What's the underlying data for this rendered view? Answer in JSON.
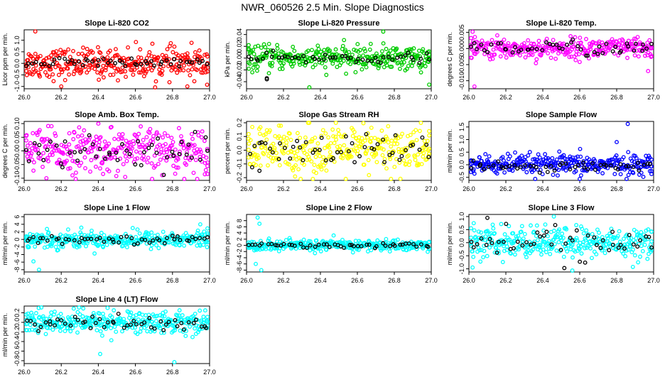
{
  "page_title": "NWR_060526  2.5 Min. Slope Diagnostics",
  "colors": {
    "red": "#ff0000",
    "green": "#00cc00",
    "magenta": "#ff00ff",
    "yellow": "#ffff00",
    "blue": "#0000ff",
    "cyan": "#00ffff",
    "black": "#000000"
  },
  "chart_data": [
    {
      "type": "scatter",
      "title": "Slope Li-820 CO2",
      "ylabel": "Licor ppm per min.",
      "xlabel": "",
      "xlim": [
        26.0,
        27.0
      ],
      "ylim": [
        -1.1,
        1.45
      ],
      "x_ticks": [
        "26.0",
        "26.2",
        "26.4",
        "26.6",
        "26.8",
        "27.0"
      ],
      "y_ticks": [
        -1.0,
        -0.5,
        0.0,
        0.5,
        1.0
      ],
      "y_tick_labels": [
        "-1.0",
        "-0.5",
        "0.0",
        "0.5",
        "1.0"
      ],
      "color_key": "red",
      "series": [
        {
          "name": "primary",
          "color_key": "red",
          "n": 330,
          "center": 0.0,
          "spread": 0.32,
          "outliers": [
            [
              26.06,
              1.38
            ],
            [
              26.2,
              -1.0
            ],
            [
              26.88,
              -1.0
            ]
          ]
        },
        {
          "name": "secondary",
          "color_key": "black",
          "n": 50,
          "center": 0.02,
          "spread": 0.12,
          "outliers": []
        }
      ]
    },
    {
      "type": "scatter",
      "title": "Slope Li-820 Pressure",
      "ylabel": "kPa per min.",
      "xlabel": "",
      "xlim": [
        26.0,
        27.0
      ],
      "ylim": [
        -0.052,
        0.048
      ],
      "x_ticks": [
        "26.0",
        "26.2",
        "26.4",
        "26.6",
        "26.8",
        "27.0"
      ],
      "y_ticks": [
        -0.04,
        -0.02,
        0.0,
        0.02,
        0.04
      ],
      "y_tick_labels": [
        "-0.04",
        "-0.02",
        "0.00",
        "0.02",
        "0.04"
      ],
      "color_key": "green",
      "series": [
        {
          "name": "primary",
          "color_key": "green",
          "n": 330,
          "center": 0.0,
          "spread": 0.01,
          "outliers": [
            [
              26.34,
              -0.05
            ],
            [
              26.74,
              0.045
            ],
            [
              26.99,
              -0.045
            ]
          ]
        },
        {
          "name": "secondary",
          "color_key": "black",
          "n": 50,
          "center": 0.0,
          "spread": 0.004,
          "outliers": [
            [
              26.11,
              -0.036
            ],
            [
              26.11,
              -0.034
            ]
          ]
        }
      ]
    },
    {
      "type": "scatter",
      "title": "Slope Li-820 Temp.",
      "ylabel": "degrees C per min.",
      "xlabel": "",
      "xlim": [
        26.0,
        27.0
      ],
      "ylim": [
        -0.0125,
        0.0058
      ],
      "x_ticks": [
        "26.0",
        "26.2",
        "26.4",
        "26.6",
        "26.8",
        "27.0"
      ],
      "y_ticks": [
        -0.01,
        -0.005,
        0.0,
        0.005
      ],
      "y_tick_labels": [
        "-0.010",
        "-0.005",
        "0.000",
        "0.005"
      ],
      "color_key": "magenta",
      "series": [
        {
          "name": "primary",
          "color_key": "magenta",
          "n": 330,
          "center": 0.0,
          "spread": 0.0016,
          "outliers": [
            [
              26.03,
              -0.0118
            ],
            [
              26.02,
              0.0052
            ],
            [
              26.97,
              -0.007
            ]
          ]
        },
        {
          "name": "secondary",
          "color_key": "black",
          "n": 50,
          "center": 0.0002,
          "spread": 0.0012,
          "outliers": []
        }
      ]
    },
    {
      "type": "scatter",
      "title": "Slope Amb. Box Temp.",
      "ylabel": "degrees C per min.",
      "xlabel": "",
      "xlim": [
        26.0,
        27.0
      ],
      "ylim": [
        -0.108,
        0.108
      ],
      "x_ticks": [
        "26.0",
        "26.2",
        "26.4",
        "26.6",
        "26.8",
        "27.0"
      ],
      "y_ticks": [
        -0.1,
        -0.05,
        0.0,
        0.05,
        0.1
      ],
      "y_tick_labels": [
        "-0.10",
        "-0.05",
        "0.00",
        "0.05",
        "0.10"
      ],
      "color_key": "magenta",
      "series": [
        {
          "name": "primary",
          "color_key": "magenta",
          "n": 330,
          "center": 0.0,
          "spread": 0.04,
          "outliers": [
            [
              26.4,
              0.1
            ],
            [
              26.12,
              -0.1
            ]
          ]
        },
        {
          "name": "secondary",
          "color_key": "black",
          "n": 50,
          "center": 0.0,
          "spread": 0.03,
          "outliers": []
        }
      ]
    },
    {
      "type": "scatter",
      "title": "Slope Gas Stream RH",
      "ylabel": "percent per min.",
      "xlabel": "",
      "xlim": [
        26.0,
        27.0
      ],
      "ylim": [
        -0.22,
        0.21
      ],
      "x_ticks": [
        "26.0",
        "26.2",
        "26.4",
        "26.6",
        "26.8",
        "27.0"
      ],
      "y_ticks": [
        -0.2,
        -0.1,
        0.0,
        0.1,
        0.2
      ],
      "y_tick_labels": [
        "-0.2",
        "-0.1",
        "0.0",
        "0.1",
        "0.2"
      ],
      "color_key": "yellow",
      "series": [
        {
          "name": "primary",
          "color_key": "yellow",
          "n": 330,
          "center": 0.0,
          "spread": 0.09,
          "outliers": []
        },
        {
          "name": "secondary",
          "color_key": "black",
          "n": 50,
          "center": 0.0,
          "spread": 0.06,
          "outliers": [
            [
              26.07,
              -0.15
            ]
          ]
        }
      ]
    },
    {
      "type": "scatter",
      "title": "Slope Sample Flow",
      "ylabel": "ml/min per min.",
      "xlabel": "",
      "xlim": [
        26.0,
        27.0
      ],
      "ylim": [
        -0.62,
        1.72
      ],
      "x_ticks": [
        "26.0",
        "26.2",
        "26.4",
        "26.6",
        "26.8",
        "27.0"
      ],
      "y_ticks": [
        -0.5,
        0.0,
        0.5,
        1.0,
        1.5
      ],
      "y_tick_labels": [
        "-0.5",
        "0.0",
        "0.5",
        "1.0",
        "1.5"
      ],
      "color_key": "blue",
      "series": [
        {
          "name": "primary",
          "color_key": "blue",
          "n": 330,
          "center": 0.0,
          "spread": 0.2,
          "outliers": [
            [
              26.86,
              1.62
            ],
            [
              26.8,
              0.9
            ],
            [
              26.6,
              -0.6
            ]
          ]
        },
        {
          "name": "secondary",
          "color_key": "black",
          "n": 50,
          "center": -0.05,
          "spread": 0.1,
          "outliers": []
        }
      ]
    },
    {
      "type": "scatter",
      "title": "Slope Line 1 Flow",
      "ylabel": "ml/min per min.",
      "xlabel": "",
      "xlim": [
        26.0,
        27.0
      ],
      "ylim": [
        -8.6,
        6.6
      ],
      "x_ticks": [
        "26.0",
        "26.2",
        "26.4",
        "26.6",
        "26.8",
        "27.0"
      ],
      "y_ticks": [
        -8,
        -6,
        -4,
        -2,
        0,
        2,
        4,
        6
      ],
      "y_tick_labels": [
        "-8",
        "-6",
        "-4",
        "-2",
        "0",
        "2",
        "4",
        "6"
      ],
      "color_key": "cyan",
      "series": [
        {
          "name": "primary",
          "color_key": "cyan",
          "n": 330,
          "center": 0.0,
          "spread": 1.1,
          "outliers": [
            [
              26.08,
              -8.0
            ],
            [
              26.05,
              -5.8
            ],
            [
              26.95,
              4.0
            ]
          ]
        },
        {
          "name": "secondary",
          "color_key": "black",
          "n": 50,
          "center": 0.0,
          "spread": 0.45,
          "outliers": []
        }
      ]
    },
    {
      "type": "scatter",
      "title": "Slope Line 2 Flow",
      "ylabel": "ml/min per min.",
      "xlabel": "",
      "xlim": [
        26.0,
        27.0
      ],
      "ylim": [
        -8.6,
        10.0
      ],
      "x_ticks": [
        "26.0",
        "26.2",
        "26.4",
        "26.6",
        "26.8",
        "27.0"
      ],
      "y_ticks": [
        -8,
        -6,
        -4,
        -2,
        0,
        2,
        4,
        6,
        8
      ],
      "y_tick_labels": [
        "-8",
        "-6",
        "-4",
        "-2",
        "0",
        "2",
        "4",
        "6",
        "8"
      ],
      "color_key": "cyan",
      "series": [
        {
          "name": "primary",
          "color_key": "cyan",
          "n": 330,
          "center": 0.0,
          "spread": 0.9,
          "outliers": [
            [
              26.08,
              -8.0
            ],
            [
              26.06,
              9.0
            ],
            [
              26.07,
              7.0
            ],
            [
              26.05,
              -6.0
            ]
          ]
        },
        {
          "name": "secondary",
          "color_key": "black",
          "n": 50,
          "center": 0.0,
          "spread": 0.4,
          "outliers": []
        }
      ]
    },
    {
      "type": "scatter",
      "title": "Slope Line 3 Flow",
      "ylabel": "ml/min per min.",
      "xlabel": "",
      "xlim": [
        26.0,
        27.0
      ],
      "ylim": [
        -1.12,
        1.08
      ],
      "x_ticks": [
        "26.0",
        "26.2",
        "26.4",
        "26.6",
        "26.8",
        "27.0"
      ],
      "y_ticks": [
        -1.0,
        -0.5,
        0.0,
        0.5,
        1.0
      ],
      "y_tick_labels": [
        "-1.0",
        "-0.5",
        "0.0",
        "0.5",
        "1.0"
      ],
      "color_key": "cyan",
      "series": [
        {
          "name": "primary",
          "color_key": "cyan",
          "n": 330,
          "center": 0.0,
          "spread": 0.3,
          "outliers": [
            [
              26.46,
              1.0
            ],
            [
              26.56,
              -1.08
            ],
            [
              26.02,
              -0.95
            ]
          ]
        },
        {
          "name": "secondary",
          "color_key": "black",
          "n": 50,
          "center": 0.0,
          "spread": 0.32,
          "outliers": [
            [
              26.1,
              0.95
            ]
          ]
        }
      ]
    },
    {
      "type": "scatter",
      "title": "Slope Line 4 (LT) Flow",
      "ylabel": "ml/min per min.",
      "xlabel": "",
      "xlim": [
        26.0,
        27.0
      ],
      "ylim": [
        -0.86,
        0.34
      ],
      "x_ticks": [
        "26.0",
        "26.2",
        "26.4",
        "26.6",
        "26.8",
        "27.0"
      ],
      "y_ticks": [
        -0.8,
        -0.6,
        -0.4,
        -0.2,
        0.0,
        0.2
      ],
      "y_tick_labels": [
        "-0.8",
        "-0.6",
        "-0.4",
        "-0.2",
        "0.0",
        "0.2"
      ],
      "color_key": "cyan",
      "series": [
        {
          "name": "primary",
          "color_key": "cyan",
          "n": 330,
          "center": 0.0,
          "spread": 0.12,
          "outliers": [
            [
              26.41,
              -0.66
            ],
            [
              26.81,
              -0.84
            ],
            [
              26.45,
              0.3
            ]
          ]
        },
        {
          "name": "secondary",
          "color_key": "black",
          "n": 50,
          "center": -0.02,
          "spread": 0.08,
          "outliers": []
        }
      ]
    }
  ]
}
